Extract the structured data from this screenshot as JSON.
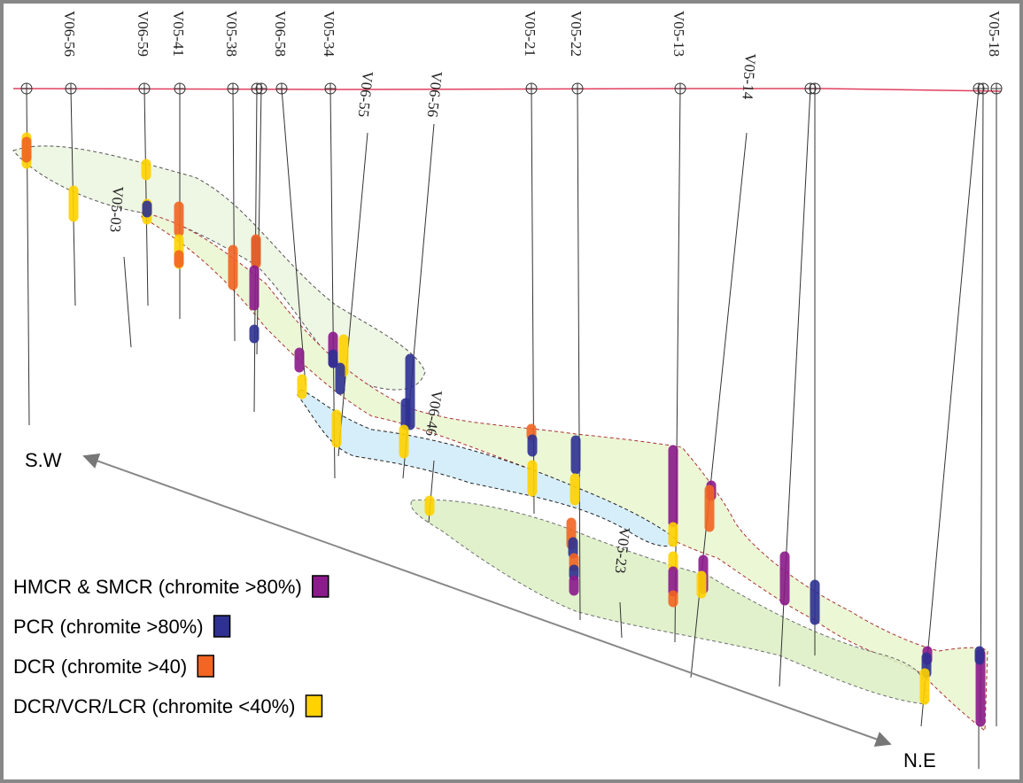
{
  "holes": [
    {
      "label": "V06-56"
    },
    {
      "label": "V06-59"
    },
    {
      "label": "V05-41"
    },
    {
      "label": "V05-38"
    },
    {
      "label": "V06-58"
    },
    {
      "label": "V05-34"
    },
    {
      "label": "V06-55"
    },
    {
      "label": "V06-56"
    },
    {
      "label": "V05-21"
    },
    {
      "label": "V05-22"
    },
    {
      "label": "V05-13"
    },
    {
      "label": "V05-14"
    },
    {
      "label": "V05-18"
    },
    {
      "label": "V05-03"
    },
    {
      "label": "V06-46"
    },
    {
      "label": "V05-23"
    }
  ],
  "direction": {
    "start": "S.W",
    "end": "N.E"
  },
  "legend": [
    {
      "label": "HMCR & SMCR (chromite >80%)",
      "color": "#8b1a8b"
    },
    {
      "label": "PCR (chromite >80%)",
      "color": "#2e3192"
    },
    {
      "label": "DCR (chromite >40)",
      "color": "#f26522"
    },
    {
      "label": "DCR/VCR/LCR (chromite <40%)",
      "color": "#ffd200"
    }
  ]
}
